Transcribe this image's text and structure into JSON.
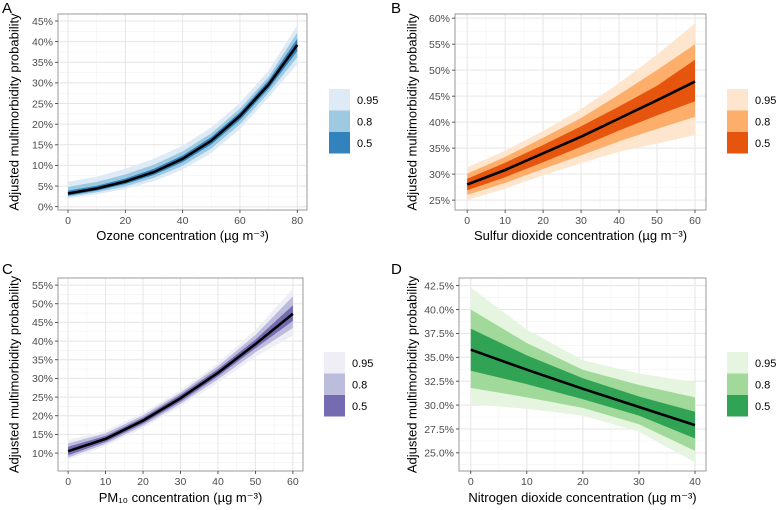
{
  "chart_data": [
    {
      "panel": "A",
      "type": "area",
      "xlabel": "Ozone concentration (µg m⁻³)",
      "ylabel": "Adjusted multimorbidity probability",
      "xlim": [
        -3.5,
        83.4
      ],
      "ylim": [
        -0.8,
        46.7
      ],
      "xticks": [
        0,
        20,
        40,
        60,
        80
      ],
      "xminor": [
        10,
        30,
        50,
        70
      ],
      "yticks": [
        0,
        5,
        10,
        15,
        20,
        25,
        30,
        35,
        40,
        45
      ],
      "ytick_labels": [
        "0%",
        "5%",
        "10%",
        "15%",
        "20%",
        "25%",
        "30%",
        "35%",
        "40%",
        "45%"
      ],
      "yminor_step": 2.5,
      "legend": [
        "0.95",
        "0.8",
        "0.5"
      ],
      "colors": [
        "#deebf7",
        "#9ecae1",
        "#3182bd"
      ],
      "x": [
        0,
        10,
        20,
        30,
        40,
        50,
        60,
        70,
        80
      ],
      "center": [
        3.2,
        4.4,
        6.1,
        8.4,
        11.6,
        16.0,
        22.0,
        29.6,
        39.2
      ],
      "bands": [
        {
          "level": "0.95",
          "lo": [
            2.0,
            3.0,
            4.3,
            6.2,
            9.0,
            13.0,
            18.8,
            26.5,
            34.5
          ],
          "hi": [
            6.0,
            7.3,
            9.2,
            11.6,
            14.8,
            19.2,
            25.2,
            33.0,
            44.0
          ]
        },
        {
          "level": "0.8",
          "lo": [
            2.4,
            3.5,
            4.9,
            7.0,
            9.9,
            14.1,
            20.0,
            27.6,
            36.2
          ],
          "hi": [
            4.8,
            6.0,
            7.8,
            10.2,
            13.4,
            17.8,
            23.8,
            31.5,
            42.2
          ]
        },
        {
          "level": "0.5",
          "lo": [
            2.7,
            3.9,
            5.5,
            7.7,
            10.8,
            15.1,
            21.0,
            28.6,
            37.7
          ],
          "hi": [
            3.9,
            5.1,
            6.8,
            9.2,
            12.4,
            16.9,
            22.9,
            30.6,
            40.7
          ]
        }
      ]
    },
    {
      "panel": "B",
      "type": "area",
      "xlabel": "Sulfur dioxide concentration (µg m⁻³)",
      "ylabel": "Adjusted multimorbidity probability",
      "xlim": [
        -3.2,
        62.9
      ],
      "ylim": [
        23.1,
        60.8
      ],
      "xticks": [
        0,
        10,
        20,
        30,
        40,
        50,
        60
      ],
      "xminor": [
        5,
        15,
        25,
        35,
        45,
        55
      ],
      "yticks": [
        25,
        30,
        35,
        40,
        45,
        50,
        55,
        60
      ],
      "ytick_labels": [
        "25%",
        "30%",
        "35%",
        "40%",
        "45%",
        "50%",
        "55%",
        "60%"
      ],
      "yminor_step": 2.5,
      "legend": [
        "0.95",
        "0.8",
        "0.5"
      ],
      "colors": [
        "#fee6ce",
        "#fdae6b",
        "#e6550d"
      ],
      "x": [
        0,
        10,
        20,
        30,
        40,
        50,
        60
      ],
      "center": [
        28.0,
        30.8,
        34.0,
        37.2,
        40.7,
        44.2,
        47.8
      ],
      "bands": [
        {
          "level": "0.95",
          "lo": [
            25.0,
            27.2,
            29.8,
            32.1,
            34.3,
            35.9,
            37.5
          ],
          "hi": [
            31.3,
            34.5,
            38.3,
            42.5,
            47.5,
            53.0,
            59.0
          ]
        },
        {
          "level": "0.8",
          "lo": [
            26.0,
            28.3,
            31.0,
            33.6,
            36.3,
            38.7,
            41.0
          ],
          "hi": [
            30.1,
            33.3,
            37.0,
            40.8,
            45.3,
            50.0,
            55.0
          ]
        },
        {
          "level": "0.5",
          "lo": [
            26.9,
            29.4,
            32.3,
            35.3,
            38.4,
            41.3,
            44.0
          ],
          "hi": [
            29.1,
            32.2,
            35.6,
            39.2,
            43.0,
            47.0,
            52.0
          ]
        }
      ]
    },
    {
      "panel": "C",
      "type": "area",
      "xlabel": "PM₁₀ concentration (µg m⁻³)",
      "ylabel": "Adjusted multimorbidity probability",
      "xlim": [
        -2.7,
        62.7
      ],
      "ylim": [
        5.2,
        56.9
      ],
      "xticks": [
        0,
        10,
        20,
        30,
        40,
        50,
        60
      ],
      "xminor": [
        5,
        15,
        25,
        35,
        45,
        55
      ],
      "yticks": [
        10,
        15,
        20,
        25,
        30,
        35,
        40,
        45,
        50,
        55
      ],
      "ytick_labels": [
        "10%",
        "15%",
        "20%",
        "25%",
        "30%",
        "35%",
        "40%",
        "45%",
        "50%",
        "55%"
      ],
      "yminor_step": 2.5,
      "legend": [
        "0.95",
        "0.8",
        "0.5"
      ],
      "colors": [
        "#efedf5",
        "#bcbddc",
        "#756bb1"
      ],
      "x": [
        0,
        10,
        20,
        30,
        40,
        50,
        60
      ],
      "center": [
        10.5,
        13.8,
        18.7,
        24.7,
        31.5,
        39.2,
        47.3
      ],
      "bands": [
        {
          "level": "0.95",
          "lo": [
            8.2,
            11.9,
            16.7,
            22.5,
            28.9,
            35.8,
            41.5
          ],
          "hi": [
            13.5,
            16.0,
            20.8,
            26.9,
            34.1,
            43.0,
            54.0
          ]
        },
        {
          "level": "0.8",
          "lo": [
            8.8,
            12.5,
            17.3,
            23.2,
            29.8,
            37.0,
            43.5
          ],
          "hi": [
            12.6,
            15.3,
            20.1,
            26.2,
            33.3,
            41.6,
            52.0
          ]
        },
        {
          "level": "0.5",
          "lo": [
            9.4,
            13.0,
            17.9,
            23.8,
            30.6,
            38.1,
            45.4
          ],
          "hi": [
            11.7,
            14.6,
            19.5,
            25.6,
            32.5,
            40.4,
            49.6
          ]
        }
      ]
    },
    {
      "panel": "D",
      "type": "area",
      "xlabel": "Nitrogen dioxide concentration (µg m⁻³)",
      "ylabel": "Adjusted multimorbidity probability",
      "xlim": [
        -2.1,
        41.96
      ],
      "ylim": [
        23.1,
        43.3
      ],
      "xticks": [
        0,
        10,
        20,
        30,
        40
      ],
      "xminor": [
        5,
        15,
        25,
        35
      ],
      "yticks": [
        25,
        27.5,
        30,
        32.5,
        35,
        37.5,
        40,
        42.5
      ],
      "ytick_labels": [
        "25.0%",
        "27.5%",
        "30.0%",
        "32.5%",
        "35.0%",
        "37.5%",
        "40.0%",
        "42.5%"
      ],
      "yminor_step": 1.25,
      "legend": [
        "0.95",
        "0.8",
        "0.5"
      ],
      "colors": [
        "#e5f5e0",
        "#a1d99b",
        "#31a354"
      ],
      "x": [
        0,
        10,
        20,
        30,
        40
      ],
      "center": [
        35.8,
        33.7,
        31.7,
        29.8,
        27.9
      ],
      "bands": [
        {
          "level": "0.95",
          "lo": [
            30.1,
            29.6,
            28.9,
            27.2,
            24.0
          ],
          "hi": [
            42.3,
            37.9,
            34.7,
            33.3,
            32.4
          ]
        },
        {
          "level": "0.8",
          "lo": [
            31.8,
            30.8,
            29.7,
            28.0,
            25.2
          ],
          "hi": [
            40.0,
            36.5,
            33.7,
            32.1,
            30.8
          ]
        },
        {
          "level": "0.5",
          "lo": [
            33.6,
            32.2,
            30.6,
            28.9,
            26.5
          ],
          "hi": [
            38.0,
            35.2,
            32.8,
            30.9,
            29.3
          ]
        }
      ]
    }
  ]
}
